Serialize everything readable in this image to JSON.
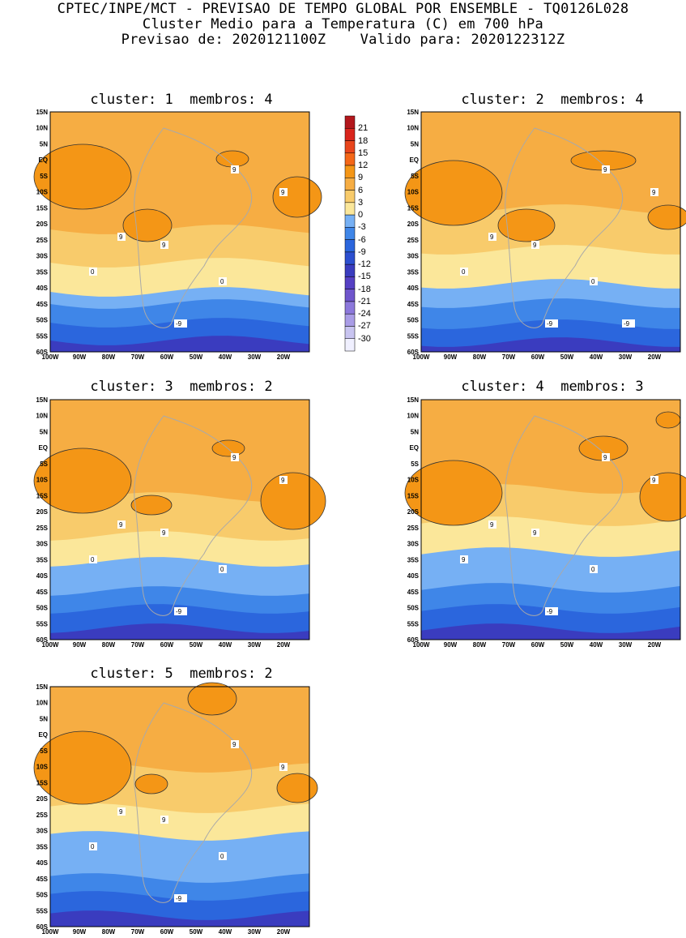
{
  "header": {
    "line1": "CPTEC/INPE/MCT - PREVISAO DE TEMPO GLOBAL POR ENSEMBLE - TQ0126L028",
    "line2": "Cluster Medio para a Temperatura (C) em 700 hPa",
    "line3": "Previsao de: 2020121100Z    Valido para: 2020122312Z"
  },
  "colors": {
    "palette": [
      "#f0f0ff",
      "#c8c4f0",
      "#a99ce6",
      "#8c78dc",
      "#6f55cc",
      "#5640c4",
      "#3a3cbf",
      "#2c4fd0",
      "#2b66dd",
      "#3f86e8",
      "#76b0f4",
      "#fbe79a",
      "#f8cb6b",
      "#f6ad43",
      "#f49616",
      "#f46718",
      "#e8451c",
      "#d9251c",
      "#b3171c"
    ],
    "map_line": "#a9a9a9",
    "contour": "#333333"
  },
  "colorbar": {
    "labels": [
      "21",
      "18",
      "15",
      "12",
      "9",
      "6",
      "3",
      "0",
      "-3",
      "-6",
      "-9",
      "-12",
      "-15",
      "-18",
      "-21",
      "-24",
      "-27",
      "-30"
    ]
  },
  "axes": {
    "lat_labels": [
      "15N",
      "10N",
      "5N",
      "EQ",
      "5S",
      "10S",
      "15S",
      "20S",
      "25S",
      "30S",
      "35S",
      "40S",
      "45S",
      "50S",
      "55S",
      "60S"
    ],
    "lon_labels": [
      "100W",
      "90W",
      "80W",
      "70W",
      "60W",
      "50W",
      "40W",
      "30W",
      "20W"
    ]
  },
  "panels": [
    {
      "title": "cluster: 1  membros: 4",
      "contour_labels": [
        "9",
        "9",
        "9",
        "9",
        "0",
        "0",
        "-9"
      ]
    },
    {
      "title": "cluster: 2  membros: 4",
      "contour_labels": [
        "9",
        "9",
        "9",
        "9",
        "0",
        "0",
        "-9",
        "-9"
      ]
    },
    {
      "title": "cluster: 3  membros: 2",
      "contour_labels": [
        "9",
        "9",
        "9",
        "9",
        "0",
        "0",
        "-9"
      ]
    },
    {
      "title": "cluster: 4  membros: 3",
      "contour_labels": [
        "9",
        "9",
        "9",
        "9",
        "9",
        "0",
        "-9"
      ]
    },
    {
      "title": "cluster: 5  membros: 2",
      "contour_labels": [
        "9",
        "9",
        "9",
        "9",
        "0",
        "0",
        "-9"
      ]
    }
  ]
}
